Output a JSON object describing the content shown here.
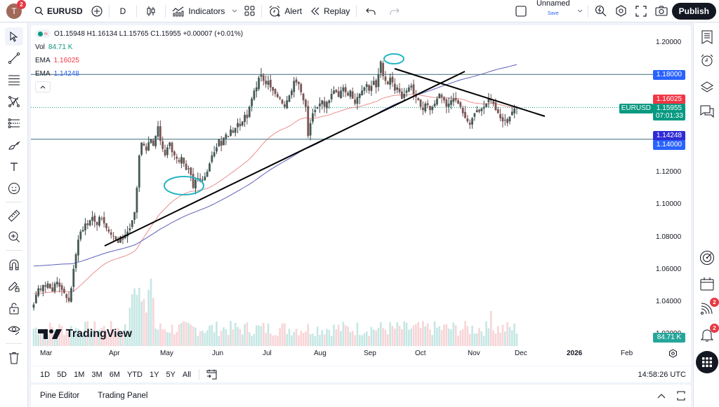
{
  "topbar": {
    "avatar_letter": "T",
    "avatar_badge": "2",
    "symbol": "EURUSD",
    "interval": "D",
    "indicators_label": "Indicators",
    "alert_label": "Alert",
    "replay_label": "Replay",
    "layout_name": "Unnamed",
    "layout_save": "Save",
    "publish_label": "Publish"
  },
  "legend": {
    "ohlc": "O1.15948 H1.16134 L1.15765 C1.15955 +0.00007 (+0.01%)",
    "vol_label": "Vol",
    "vol_value": "84.71 K",
    "ema1_label": "EMA",
    "ema1_value": "1.16025",
    "ema2_label": "EMA",
    "ema2_value": "1.14248"
  },
  "price_axis": {
    "ticks": [
      "1.20000",
      "1.12000",
      "1.10000",
      "1.08000",
      "1.06000",
      "1.04000",
      "1.02000"
    ],
    "badges": {
      "level_high": "1.18000",
      "ema_fast": "1.16025",
      "symbol": "EURUSD",
      "last_price": "1.15955",
      "countdown": "07:01:33",
      "ema_slow": "1.14248",
      "level_low": "1.14000",
      "volume": "84.71 K"
    }
  },
  "time_axis": {
    "labels": [
      "Mar",
      "Apr",
      "May",
      "Jun",
      "Jul",
      "Aug",
      "Sep",
      "Oct",
      "Nov",
      "Dec",
      "2026",
      "Feb"
    ]
  },
  "timeframes": [
    "1D",
    "5D",
    "1M",
    "3M",
    "6M",
    "YTD",
    "1Y",
    "5Y",
    "All"
  ],
  "clock": "14:58:26 UTC",
  "bottom_panel": {
    "tabs": [
      "Pine Editor",
      "Trading Panel"
    ]
  },
  "watermark": "TradingView",
  "right_toolbar": {
    "ideas_badge": "2",
    "alerts_badge": "2"
  },
  "colors": {
    "up": "#089981",
    "down": "#f23645",
    "candle_body": "#4a5a58",
    "ema_fast": "#e57373",
    "ema_slow": "#5c5fb8",
    "level_line": "#3d6b7a",
    "annotation": "#26b5c4",
    "trendline": "#000000",
    "level_badge": "#2962ff"
  },
  "chart_data": {
    "type": "candlestick",
    "title": "EURUSD, D",
    "ylim": [
      1.02,
      1.21
    ],
    "hlines": [
      1.18,
      1.14
    ],
    "ema_fast_last": 1.16025,
    "ema_slow_last": 1.14248,
    "close": [
      1.038,
      1.044,
      1.048,
      1.047,
      1.05,
      1.049,
      1.051,
      1.048,
      1.046,
      1.051,
      1.052,
      1.049,
      1.047,
      1.045,
      1.042,
      1.04,
      1.048,
      1.06,
      1.069,
      1.078,
      1.083,
      1.084,
      1.088,
      1.087,
      1.09,
      1.092,
      1.089,
      1.087,
      1.092,
      1.091,
      1.088,
      1.085,
      1.083,
      1.081,
      1.08,
      1.078,
      1.076,
      1.08,
      1.078,
      1.081,
      1.083,
      1.085,
      1.09,
      1.095,
      1.11,
      1.13,
      1.138,
      1.136,
      1.133,
      1.138,
      1.14,
      1.136,
      1.142,
      1.148,
      1.139,
      1.134,
      1.13,
      1.135,
      1.138,
      1.132,
      1.13,
      1.128,
      1.126,
      1.129,
      1.125,
      1.121,
      1.122,
      1.118,
      1.11,
      1.115,
      1.116,
      1.114,
      1.115,
      1.117,
      1.12,
      1.125,
      1.13,
      1.132,
      1.135,
      1.14,
      1.136,
      1.141,
      1.143,
      1.142,
      1.146,
      1.144,
      1.147,
      1.15,
      1.148,
      1.151,
      1.155,
      1.153,
      1.16,
      1.165,
      1.17,
      1.172,
      1.178,
      1.18,
      1.176,
      1.174,
      1.176,
      1.172,
      1.17,
      1.168,
      1.166,
      1.165,
      1.162,
      1.16,
      1.164,
      1.167,
      1.17,
      1.176,
      1.175,
      1.174,
      1.169,
      1.164,
      1.16,
      1.142,
      1.15,
      1.156,
      1.158,
      1.16,
      1.162,
      1.164,
      1.16,
      1.163,
      1.164,
      1.168,
      1.17,
      1.169,
      1.166,
      1.17,
      1.172,
      1.169,
      1.167,
      1.17,
      1.165,
      1.162,
      1.166,
      1.168,
      1.17,
      1.172,
      1.174,
      1.17,
      1.173,
      1.176,
      1.172,
      1.18,
      1.188,
      1.179,
      1.176,
      1.174,
      1.178,
      1.175,
      1.17,
      1.172,
      1.169,
      1.165,
      1.168,
      1.17,
      1.172,
      1.173,
      1.168,
      1.166,
      1.164,
      1.16,
      1.158,
      1.162,
      1.161,
      1.158,
      1.16,
      1.162,
      1.165,
      1.168,
      1.166,
      1.164,
      1.16,
      1.162,
      1.164,
      1.165,
      1.164,
      1.162,
      1.16,
      1.156,
      1.153,
      1.151,
      1.149,
      1.153,
      1.156,
      1.158,
      1.157,
      1.159,
      1.16,
      1.162,
      1.165,
      1.164,
      1.162,
      1.158,
      1.156,
      1.153,
      1.151,
      1.152,
      1.15,
      1.154,
      1.157,
      1.159,
      1.1596
    ]
  }
}
